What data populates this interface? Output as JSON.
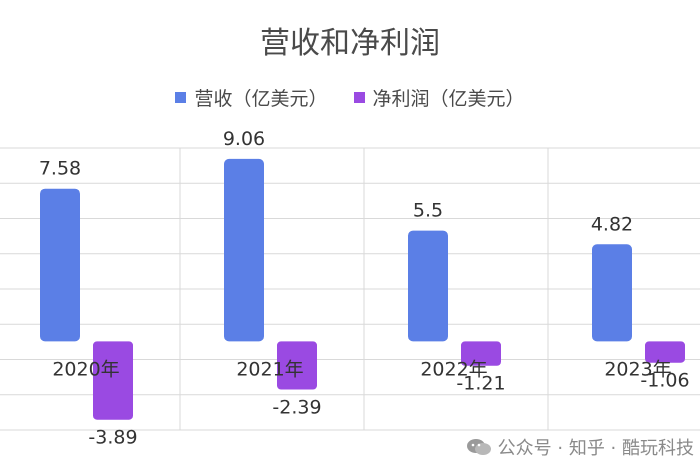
{
  "chart_data": {
    "type": "bar",
    "title": "营收和净利润",
    "categories": [
      "2020年",
      "2021年",
      "2022年",
      "2023年"
    ],
    "series": [
      {
        "name": "营收（亿美元）",
        "values": [
          7.58,
          9.06,
          5.5,
          4.82
        ],
        "color": "#5b7fe6"
      },
      {
        "name": "净利润（亿美元）",
        "values": [
          -3.89,
          -2.39,
          -1.21,
          -1.06
        ],
        "color": "#9a4ae2"
      }
    ],
    "value_labels": [
      [
        "7.58",
        "9.06",
        "5.5",
        "4.82"
      ],
      [
        "-3.89",
        "-2.39",
        "-1.21",
        "-1.06"
      ]
    ],
    "ylim": [
      -4.4,
      9.6
    ],
    "grid": true,
    "legend_position": "top-center"
  },
  "watermark": {
    "text": "公众号 · 知乎 · 酷玩科技",
    "icon": "wechat-icon"
  }
}
